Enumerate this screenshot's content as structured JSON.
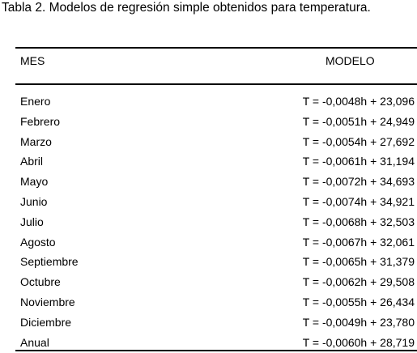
{
  "caption": "Tabla 2. Modelos de regresión simple obtenidos para temperatura.",
  "table": {
    "headers": {
      "mes": "MES",
      "modelo": "MODELO"
    },
    "rows": [
      {
        "mes": "Enero",
        "modelo": "T = -0,0048h + 23,096"
      },
      {
        "mes": "Febrero",
        "modelo": "T = -0,0051h + 24,949"
      },
      {
        "mes": "Marzo",
        "modelo": "T = -0,0054h + 27,692"
      },
      {
        "mes": "Abril",
        "modelo": "T = -0,0061h + 31,194"
      },
      {
        "mes": "Mayo",
        "modelo": "T = -0,0072h + 34,693"
      },
      {
        "mes": "Junio",
        "modelo": "T = -0,0074h + 34,921"
      },
      {
        "mes": "Julio",
        "modelo": "T = -0,0068h + 32,503"
      },
      {
        "mes": "Agosto",
        "modelo": "T = -0,0067h + 32,061"
      },
      {
        "mes": "Septiembre",
        "modelo": "T = -0,0065h + 31,379"
      },
      {
        "mes": "Octubre",
        "modelo": "T = -0,0062h + 29,508"
      },
      {
        "mes": "Noviembre",
        "modelo": "T = -0,0055h + 26,434"
      },
      {
        "mes": "Diciembre",
        "modelo": "T = -0,0049h + 23,780"
      },
      {
        "mes": "Anual",
        "modelo": "T = -0,0060h + 28,719"
      }
    ]
  }
}
